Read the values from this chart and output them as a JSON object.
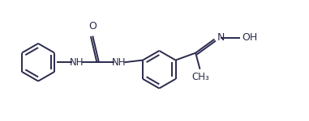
{
  "bg_color": "#ffffff",
  "line_color": "#2b2b4e",
  "line_width": 1.4,
  "font_size": 8.5,
  "font_family": "DejaVu Sans",
  "xlim": [
    0.0,
    8.5
  ],
  "ylim": [
    0.0,
    3.2
  ],
  "figsize": [
    3.81,
    1.5
  ],
  "dpi": 100
}
